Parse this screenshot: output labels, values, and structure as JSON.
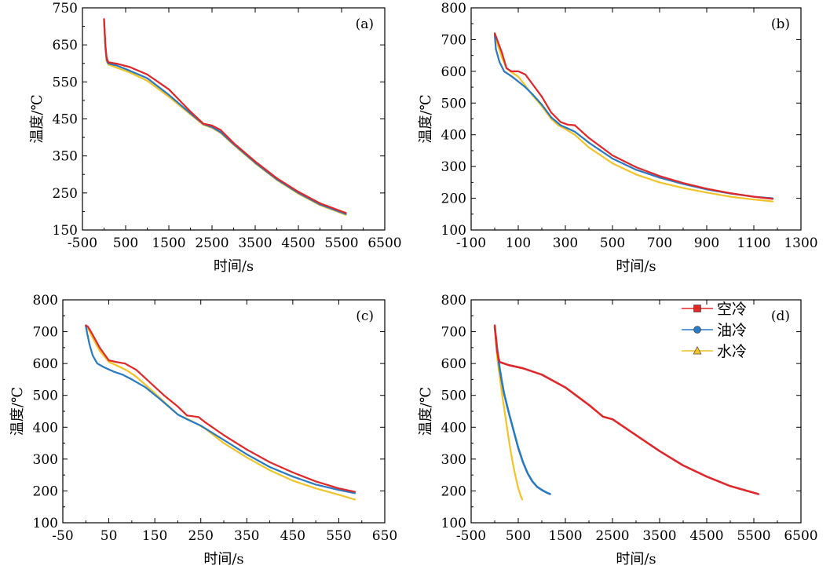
{
  "colors": {
    "air": "#e0282a",
    "oil": "#2a7ac2",
    "water": "#f2c42a"
  },
  "legend": [
    {
      "name": "空冷",
      "color": "#e0282a",
      "marker": "square"
    },
    {
      "name": "油冷",
      "color": "#2a7ac2",
      "marker": "circle"
    },
    {
      "name": "水冷",
      "color": "#f2c42a",
      "marker": "triangle"
    }
  ],
  "chart_data": [
    {
      "type": "line",
      "panel": "(a)",
      "xlabel": "时间/s",
      "ylabel": "温度/℃",
      "xlim": [
        -500,
        6500
      ],
      "ylim": [
        150,
        750
      ],
      "xticks": [
        -500,
        500,
        1500,
        2500,
        3500,
        4500,
        5500,
        6500
      ],
      "yticks": [
        150,
        250,
        350,
        450,
        550,
        650,
        750
      ],
      "series": [
        {
          "name": "空冷",
          "x": [
            0,
            30,
            60,
            100,
            300,
            600,
            1000,
            1500,
            2000,
            2300,
            2500,
            2700,
            3000,
            3500,
            4000,
            4500,
            5000,
            5600
          ],
          "y": [
            720,
            650,
            615,
            603,
            599,
            590,
            570,
            530,
            470,
            437,
            432,
            420,
            385,
            335,
            290,
            253,
            222,
            196
          ]
        },
        {
          "name": "油冷",
          "x": [
            0,
            30,
            60,
            100,
            300,
            600,
            1000,
            1500,
            2000,
            2300,
            2500,
            2700,
            3000,
            3500,
            4000,
            4500,
            5000,
            5600
          ],
          "y": [
            718,
            645,
            610,
            600,
            594,
            580,
            560,
            515,
            465,
            436,
            428,
            414,
            382,
            332,
            287,
            250,
            219,
            193
          ]
        },
        {
          "name": "水冷",
          "x": [
            0,
            30,
            60,
            100,
            300,
            600,
            1000,
            1500,
            2000,
            2300,
            2500,
            2700,
            3000,
            3500,
            4000,
            4500,
            5000,
            5600
          ],
          "y": [
            715,
            640,
            605,
            597,
            588,
            575,
            553,
            510,
            462,
            434,
            426,
            412,
            380,
            330,
            285,
            248,
            217,
            191
          ]
        }
      ]
    },
    {
      "type": "line",
      "panel": "(b)",
      "xlabel": "时间/s",
      "ylabel": "温度/℃",
      "xlim": [
        -100,
        1300
      ],
      "ylim": [
        100,
        800
      ],
      "xticks": [
        -100,
        100,
        300,
        500,
        700,
        900,
        1100,
        1300
      ],
      "yticks": [
        100,
        200,
        300,
        400,
        500,
        600,
        700,
        800
      ],
      "series": [
        {
          "name": "空冷",
          "x": [
            0,
            10,
            30,
            50,
            70,
            100,
            130,
            160,
            200,
            240,
            280,
            310,
            340,
            400,
            500,
            600,
            700,
            800,
            900,
            1000,
            1100,
            1180
          ],
          "y": [
            720,
            700,
            660,
            610,
            600,
            600,
            590,
            560,
            520,
            470,
            440,
            432,
            430,
            390,
            335,
            298,
            270,
            248,
            230,
            216,
            205,
            198
          ]
        },
        {
          "name": "油冷",
          "x": [
            0,
            5,
            20,
            40,
            70,
            100,
            130,
            160,
            200,
            240,
            280,
            310,
            340,
            400,
            500,
            600,
            700,
            800,
            900,
            1000,
            1100,
            1180
          ],
          "y": [
            715,
            670,
            630,
            600,
            585,
            568,
            550,
            528,
            495,
            455,
            430,
            420,
            410,
            375,
            325,
            290,
            265,
            245,
            228,
            215,
            205,
            200
          ]
        },
        {
          "name": "水冷",
          "x": [
            0,
            10,
            30,
            50,
            70,
            100,
            130,
            160,
            200,
            240,
            270,
            300,
            340,
            400,
            500,
            600,
            700,
            800,
            900,
            1000,
            1100,
            1180
          ],
          "y": [
            718,
            690,
            645,
            610,
            598,
            583,
            555,
            525,
            490,
            450,
            430,
            418,
            400,
            360,
            310,
            275,
            250,
            232,
            218,
            205,
            196,
            190
          ]
        }
      ]
    },
    {
      "type": "line",
      "panel": "(c)",
      "xlabel": "时间/s",
      "ylabel": "温度/℃",
      "xlim": [
        -50,
        650
      ],
      "ylim": [
        100,
        800
      ],
      "xticks": [
        -50,
        50,
        150,
        250,
        350,
        450,
        550,
        650
      ],
      "yticks": [
        100,
        200,
        300,
        400,
        500,
        600,
        700,
        800
      ],
      "series": [
        {
          "name": "空冷",
          "x": [
            0,
            5,
            15,
            30,
            50,
            65,
            85,
            110,
            140,
            170,
            200,
            220,
            245,
            260,
            300,
            350,
            400,
            450,
            500,
            550,
            585
          ],
          "y": [
            720,
            715,
            690,
            650,
            610,
            605,
            600,
            580,
            540,
            500,
            465,
            437,
            432,
            415,
            375,
            330,
            290,
            258,
            230,
            208,
            197
          ]
        },
        {
          "name": "油冷",
          "x": [
            0,
            3,
            8,
            15,
            25,
            40,
            60,
            80,
            100,
            130,
            160,
            200,
            220,
            250,
            300,
            350,
            400,
            450,
            500,
            550,
            585
          ],
          "y": [
            718,
            695,
            660,
            625,
            600,
            588,
            575,
            565,
            550,
            525,
            490,
            440,
            425,
            405,
            360,
            315,
            275,
            245,
            220,
            203,
            193
          ]
        },
        {
          "name": "水冷",
          "x": [
            0,
            5,
            15,
            30,
            50,
            70,
            90,
            110,
            140,
            170,
            200,
            230,
            260,
            300,
            350,
            400,
            450,
            500,
            550,
            585
          ],
          "y": [
            720,
            710,
            680,
            640,
            605,
            592,
            578,
            558,
            520,
            480,
            440,
            420,
            395,
            350,
            305,
            265,
            232,
            208,
            188,
            173
          ]
        }
      ]
    },
    {
      "type": "line",
      "panel": "(d)",
      "xlabel": "时间/s",
      "ylabel": "温度/℃",
      "xlim": [
        -500,
        6500
      ],
      "ylim": [
        100,
        800
      ],
      "xticks": [
        -500,
        500,
        1500,
        2500,
        3500,
        4500,
        5500,
        6500
      ],
      "yticks": [
        100,
        200,
        300,
        400,
        500,
        600,
        700,
        800
      ],
      "series": [
        {
          "name": "空冷",
          "x": [
            0,
            50,
            100,
            300,
            600,
            1000,
            1500,
            2000,
            2300,
            2500,
            3000,
            3500,
            4000,
            4500,
            5000,
            5600
          ],
          "y": [
            720,
            640,
            605,
            595,
            585,
            565,
            525,
            470,
            433,
            425,
            375,
            325,
            280,
            245,
            215,
            190
          ]
        },
        {
          "name": "油冷",
          "x": [
            0,
            50,
            100,
            150,
            200,
            300,
            400,
            500,
            600,
            700,
            800,
            900,
            1000,
            1100,
            1180
          ],
          "y": [
            715,
            650,
            590,
            545,
            505,
            445,
            390,
            335,
            290,
            255,
            230,
            213,
            203,
            195,
            190
          ]
        },
        {
          "name": "水冷",
          "x": [
            0,
            30,
            60,
            100,
            150,
            200,
            250,
            300,
            350,
            400,
            450,
            500,
            550,
            585
          ],
          "y": [
            720,
            660,
            610,
            565,
            510,
            460,
            410,
            360,
            315,
            275,
            240,
            208,
            185,
            173
          ]
        }
      ]
    }
  ]
}
